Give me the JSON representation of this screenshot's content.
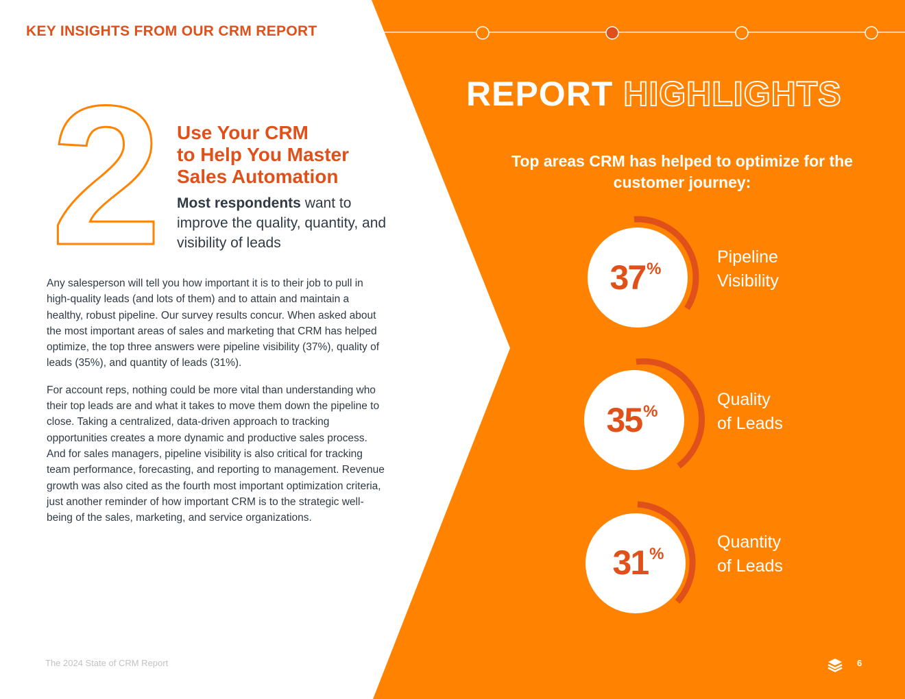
{
  "colors": {
    "orange": "#ff8200",
    "red_orange": "#e0501a",
    "text": "#2f3a45",
    "footer": "#c2c2c2"
  },
  "header": {
    "kicker": "KEY INSIGHTS FROM OUR CRM REPORT"
  },
  "section": {
    "number": "2",
    "title_lines": [
      "Use Your CRM",
      "to Help You Master",
      "Sales Automation"
    ],
    "subhead_bold": "Most respondents",
    "subhead_rest": " want to improve the quality, quantity, and visibility of leads"
  },
  "body": {
    "paragraph1": "Any salesperson will tell you how important it is to their job to pull in high-quality leads (and lots of them) and to attain and maintain a healthy, robust pipeline. Our survey results concur. When asked about the most important areas of sales and marketing that CRM has helped optimize, the top three answers were pipeline visibility (37%), quality of leads (35%), and quantity of leads (31%).",
    "paragraph2": "For account reps, nothing could be more vital than understanding who their top leads are and what it takes to move them down the pipeline to close. Taking a centralized, data-driven approach to tracking opportunities creates a more dynamic and productive sales process. And for sales managers, pipeline visibility is also critical for tracking team performance, forecasting, and reporting to management. Revenue growth was also cited as the fourth most important optimization criteria, just another reminder of how important CRM is to the strategic well-being of the sales, marketing, and service organizations."
  },
  "highlights": {
    "title_solid": "REPORT",
    "title_outline": "HIGHLIGHTS",
    "intro": "Top areas CRM has helped to optimize for the customer journey:",
    "stats": [
      {
        "value": "37",
        "unit": "%",
        "label_lines": [
          "Pipeline",
          "Visibility"
        ]
      },
      {
        "value": "35",
        "unit": "%",
        "label_lines": [
          "Quality",
          "of Leads"
        ]
      },
      {
        "value": "31",
        "unit": "%",
        "label_lines": [
          "Quantity",
          "of Leads"
        ]
      }
    ]
  },
  "footer": {
    "report_name": "The 2024 State of CRM Report",
    "page_number": "6",
    "logo_icon": "layers-icon"
  }
}
